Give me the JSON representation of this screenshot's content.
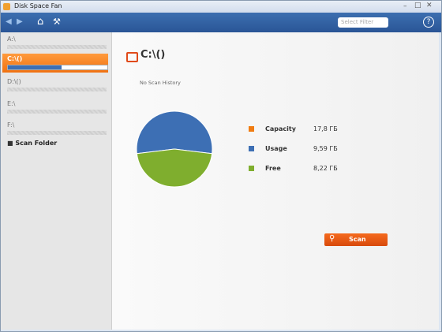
{
  "window": {
    "title": "Disk Space Fan"
  },
  "toolbar": {
    "filter_placeholder": "Select Filter"
  },
  "sidebar": {
    "drives": [
      {
        "label": "A:\\",
        "selected": false
      },
      {
        "label": "C:\\()",
        "selected": true
      },
      {
        "label": "D:\\()",
        "selected": false
      },
      {
        "label": "E:\\",
        "selected": false
      },
      {
        "label": "F:\\",
        "selected": false
      }
    ],
    "scan_folder": "Scan Folder"
  },
  "main": {
    "drive_title": "C:\\()",
    "history": "No Scan History",
    "stats": [
      {
        "name": "Capacity",
        "value": 17.8,
        "value_label": "17,8 ГБ",
        "color": "#f07c12"
      },
      {
        "name": "Usage",
        "value": 9.59,
        "value_label": "9,59 ГБ",
        "color": "#3d6fb4"
      },
      {
        "name": "Free",
        "value": 8.22,
        "value_label": "8,22 ГБ",
        "color": "#7fae2e"
      }
    ],
    "scan_button": "Scan"
  }
}
